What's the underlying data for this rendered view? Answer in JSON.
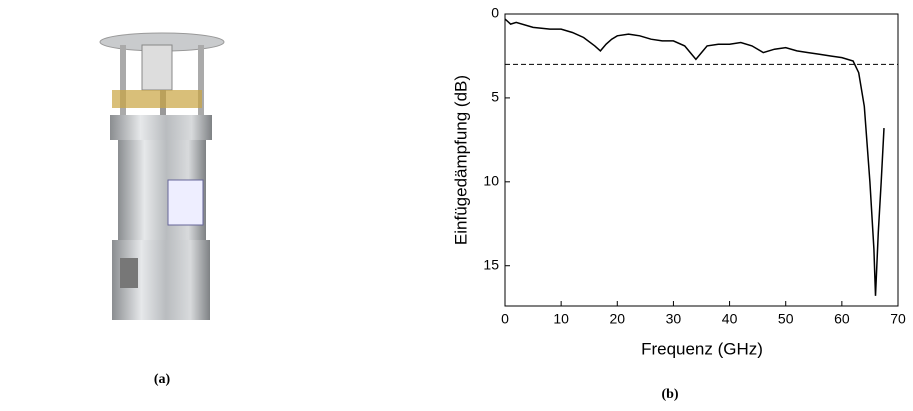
{
  "captions": [
    "(a)",
    "(b)"
  ],
  "chart_data": {
    "type": "line",
    "x_label": "Frequenz (GHz)",
    "y_label": "Einfügedämpfung (dB)",
    "x": [
      0,
      1,
      2,
      5,
      8,
      10,
      12,
      14,
      16,
      17,
      18,
      19,
      20,
      22,
      24,
      26,
      28,
      30,
      32,
      33,
      34,
      35,
      36,
      38,
      40,
      42,
      44,
      46,
      48,
      50,
      52,
      54,
      56,
      58,
      60,
      62,
      63,
      64,
      65,
      65.7,
      66,
      66.5,
      67,
      67.5
    ],
    "values": [
      0.3,
      0.6,
      0.5,
      0.8,
      0.9,
      0.9,
      1.1,
      1.4,
      1.9,
      2.2,
      1.8,
      1.5,
      1.3,
      1.2,
      1.3,
      1.5,
      1.6,
      1.6,
      1.9,
      2.3,
      2.7,
      2.3,
      1.9,
      1.8,
      1.8,
      1.7,
      1.9,
      2.3,
      2.1,
      2.0,
      2.2,
      2.3,
      2.4,
      2.5,
      2.6,
      2.8,
      3.5,
      5.5,
      10,
      14,
      16.8,
      13,
      10,
      6.8
    ],
    "color": "#000000",
    "reference_line": 3,
    "xlim": [
      0,
      70
    ],
    "xticks": [
      0,
      10,
      20,
      30,
      40,
      50,
      60,
      70
    ],
    "ylim": [
      0,
      17.4
    ],
    "yticks": [
      0,
      5,
      10,
      15
    ],
    "y_inverted": true
  }
}
